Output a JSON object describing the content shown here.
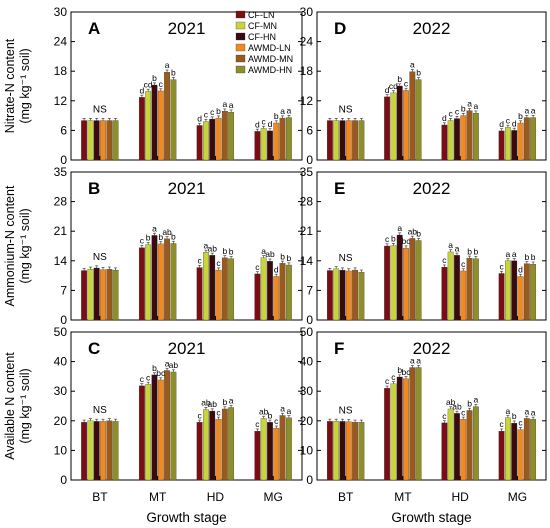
{
  "colors": {
    "CF-LN": "#7a0e14",
    "CF-MN": "#c8d43c",
    "CF-HN": "#3a0a0e",
    "AWMD-LN": "#f08a20",
    "AWMD-MN": "#9a5a1c",
    "AWMD-HN": "#8e8e2a"
  },
  "legend": {
    "placement": "top-right of panel A",
    "entries": [
      "CF-LN",
      "CF-MN",
      "CF-HN",
      "AWMD-LN",
      "AWMD-MN",
      "AWMD-HN"
    ]
  },
  "chart_data": [
    {
      "type": "bar",
      "panel": "A",
      "title": "2021",
      "ylabel_lines": [
        "Nitrate-N content",
        "(mg kg⁻¹ soil)"
      ],
      "xlabel": "",
      "ylim": [
        0,
        30
      ],
      "yticks": [
        0,
        6,
        12,
        18,
        24,
        30
      ],
      "categories": [
        "BT",
        "MT",
        "HD",
        "MG"
      ],
      "series": [
        {
          "name": "CF-LN",
          "values": [
            8.0,
            12.7,
            7.0,
            5.8
          ]
        },
        {
          "name": "CF-MN",
          "values": [
            8.0,
            13.9,
            7.8,
            6.4
          ]
        },
        {
          "name": "CF-HN",
          "values": [
            8.0,
            15.2,
            8.3,
            5.9
          ]
        },
        {
          "name": "AWMD-LN",
          "values": [
            8.0,
            14.0,
            8.5,
            7.5
          ]
        },
        {
          "name": "AWMD-MN",
          "values": [
            8.0,
            17.8,
            9.9,
            8.5
          ]
        },
        {
          "name": "AWMD-HN",
          "values": [
            8.0,
            16.3,
            9.7,
            8.6
          ]
        }
      ],
      "annotations": [
        {
          "category": "BT",
          "text": "NS"
        },
        {
          "category": "MT",
          "letters": [
            "d",
            "cd",
            "b",
            "c",
            "a",
            "b"
          ]
        },
        {
          "category": "HD",
          "letters": [
            "d",
            "c",
            "c",
            "b",
            "a",
            "a"
          ]
        },
        {
          "category": "MG",
          "letters": [
            "d",
            "c",
            "d",
            "b",
            "a",
            "a"
          ]
        }
      ]
    },
    {
      "type": "bar",
      "panel": "D",
      "title": "2022",
      "ylabel_lines": [],
      "xlabel": "",
      "ylim": [
        0,
        30
      ],
      "yticks": [
        0,
        6,
        12,
        18,
        24,
        30
      ],
      "categories": [
        "BT",
        "MT",
        "HD",
        "MG"
      ],
      "series": [
        {
          "name": "CF-LN",
          "values": [
            8.0,
            12.8,
            7.1,
            5.9
          ]
        },
        {
          "name": "CF-MN",
          "values": [
            8.0,
            13.6,
            8.0,
            6.6
          ]
        },
        {
          "name": "CF-HN",
          "values": [
            8.0,
            15.0,
            8.4,
            6.0
          ]
        },
        {
          "name": "AWMD-LN",
          "values": [
            8.0,
            14.1,
            9.0,
            7.5
          ]
        },
        {
          "name": "AWMD-MN",
          "values": [
            8.0,
            17.9,
            10.0,
            8.6
          ]
        },
        {
          "name": "AWMD-HN",
          "values": [
            8.0,
            16.3,
            9.5,
            8.6
          ]
        }
      ],
      "annotations": [
        {
          "category": "BT",
          "text": "NS"
        },
        {
          "category": "MT",
          "letters": [
            "d",
            "cd",
            "b",
            "c",
            "a",
            "b"
          ]
        },
        {
          "category": "HD",
          "letters": [
            "d",
            "c",
            "c",
            "b",
            "a",
            "a"
          ]
        },
        {
          "category": "MG",
          "letters": [
            "d",
            "c",
            "d",
            "b",
            "a",
            "a"
          ]
        }
      ]
    },
    {
      "type": "bar",
      "panel": "B",
      "title": "2021",
      "ylabel_lines": [
        "Ammonium-N content",
        "(mg kg⁻¹ soil)"
      ],
      "xlabel": "",
      "ylim": [
        0,
        35
      ],
      "yticks": [
        0,
        7,
        14,
        21,
        28,
        35
      ],
      "categories": [
        "BT",
        "MT",
        "HD",
        "MG"
      ],
      "series": [
        {
          "name": "CF-LN",
          "values": [
            11.7,
            17.1,
            12.4,
            10.9
          ]
        },
        {
          "name": "CF-MN",
          "values": [
            12.0,
            17.8,
            16.0,
            14.7
          ]
        },
        {
          "name": "CF-HN",
          "values": [
            12.3,
            20.0,
            15.3,
            13.9
          ]
        },
        {
          "name": "AWMD-LN",
          "values": [
            11.9,
            18.0,
            11.8,
            10.3
          ]
        },
        {
          "name": "AWMD-MN",
          "values": [
            12.0,
            19.2,
            14.7,
            13.4
          ]
        },
        {
          "name": "AWMD-HN",
          "values": [
            11.8,
            18.1,
            14.5,
            13.0
          ]
        }
      ],
      "annotations": [
        {
          "category": "BT",
          "text": "NS"
        },
        {
          "category": "MT",
          "letters": [
            "c",
            "b",
            "a",
            "b",
            "ab",
            "b"
          ]
        },
        {
          "category": "HD",
          "letters": [
            "c",
            "a",
            "ab",
            "c",
            "b",
            "b"
          ]
        },
        {
          "category": "MG",
          "letters": [
            "c",
            "a",
            "ab",
            "d",
            "b",
            "b"
          ]
        }
      ]
    },
    {
      "type": "bar",
      "panel": "E",
      "title": "2022",
      "ylabel_lines": [],
      "xlabel": "",
      "ylim": [
        0,
        35
      ],
      "yticks": [
        0,
        7,
        14,
        21,
        28,
        35
      ],
      "categories": [
        "BT",
        "MT",
        "HD",
        "MG"
      ],
      "series": [
        {
          "name": "CF-LN",
          "values": [
            11.7,
            17.5,
            12.5,
            11.0
          ]
        },
        {
          "name": "CF-MN",
          "values": [
            12.1,
            17.6,
            16.1,
            14.0
          ]
        },
        {
          "name": "CF-HN",
          "values": [
            11.8,
            20.1,
            15.3,
            14.0
          ]
        },
        {
          "name": "AWMD-LN",
          "values": [
            11.6,
            17.0,
            11.6,
            10.3
          ]
        },
        {
          "name": "AWMD-MN",
          "values": [
            11.8,
            19.3,
            14.6,
            13.3
          ]
        },
        {
          "name": "AWMD-HN",
          "values": [
            11.3,
            18.8,
            14.5,
            13.2
          ]
        }
      ],
      "annotations": [
        {
          "category": "BT",
          "text": "NS"
        },
        {
          "category": "MT",
          "letters": [
            "c",
            "b",
            "a",
            "bc",
            "ab",
            "b"
          ]
        },
        {
          "category": "HD",
          "letters": [
            "c",
            "a",
            "a",
            "c",
            "b",
            "b"
          ]
        },
        {
          "category": "MG",
          "letters": [
            "c",
            "a",
            "a",
            "d",
            "b",
            "b"
          ]
        }
      ]
    },
    {
      "type": "bar",
      "panel": "C",
      "title": "2021",
      "ylabel_lines": [
        "Available N content",
        "(mg kg⁻¹ soil)"
      ],
      "xlabel": "Growth stage",
      "ylim": [
        0,
        50
      ],
      "yticks": [
        0,
        10,
        20,
        30,
        40,
        50
      ],
      "categories": [
        "BT",
        "MT",
        "HD",
        "MG"
      ],
      "series": [
        {
          "name": "CF-LN",
          "values": [
            19.5,
            31.8,
            19.5,
            16.5
          ]
        },
        {
          "name": "CF-MN",
          "values": [
            20.0,
            32.3,
            23.8,
            20.8
          ]
        },
        {
          "name": "CF-HN",
          "values": [
            19.8,
            35.5,
            23.3,
            19.5
          ]
        },
        {
          "name": "AWMD-LN",
          "values": [
            19.8,
            33.8,
            20.5,
            17.5
          ]
        },
        {
          "name": "AWMD-MN",
          "values": [
            20.0,
            37.0,
            24.0,
            21.8
          ]
        },
        {
          "name": "AWMD-HN",
          "values": [
            19.8,
            36.5,
            24.5,
            21.0
          ]
        }
      ],
      "annotations": [
        {
          "category": "BT",
          "text": "NS"
        },
        {
          "category": "MT",
          "letters": [
            "c",
            "c",
            "b",
            "bc",
            "a",
            "ab"
          ]
        },
        {
          "category": "HD",
          "letters": [
            "c",
            "ab",
            "ab",
            "c",
            "b",
            "a"
          ]
        },
        {
          "category": "MG",
          "letters": [
            "c",
            "ab",
            "b",
            "c",
            "a",
            "a"
          ]
        }
      ]
    },
    {
      "type": "bar",
      "panel": "F",
      "title": "2022",
      "ylabel_lines": [],
      "xlabel": "Growth stage",
      "ylim": [
        0,
        50
      ],
      "yticks": [
        0,
        10,
        20,
        30,
        40,
        50
      ],
      "categories": [
        "BT",
        "MT",
        "HD",
        "MG"
      ],
      "series": [
        {
          "name": "CF-LN",
          "values": [
            19.8,
            31.0,
            19.3,
            16.5
          ]
        },
        {
          "name": "CF-MN",
          "values": [
            19.8,
            32.5,
            24.0,
            21.0
          ]
        },
        {
          "name": "CF-HN",
          "values": [
            19.8,
            34.8,
            22.5,
            19.2
          ]
        },
        {
          "name": "AWMD-LN",
          "values": [
            19.7,
            34.2,
            20.5,
            17.0
          ]
        },
        {
          "name": "AWMD-MN",
          "values": [
            19.5,
            38.0,
            23.5,
            20.8
          ]
        },
        {
          "name": "AWMD-HN",
          "values": [
            19.5,
            38.0,
            24.8,
            20.5
          ]
        }
      ],
      "annotations": [
        {
          "category": "BT",
          "text": "NS"
        },
        {
          "category": "MT",
          "letters": [
            "c",
            "c",
            "b",
            "bc",
            "a",
            "a"
          ]
        },
        {
          "category": "HD",
          "letters": [
            "c",
            "ab",
            "ab",
            "c",
            "b",
            "a"
          ]
        },
        {
          "category": "MG",
          "letters": [
            "c",
            "a",
            "b",
            "c",
            "a",
            "a"
          ]
        }
      ]
    }
  ]
}
